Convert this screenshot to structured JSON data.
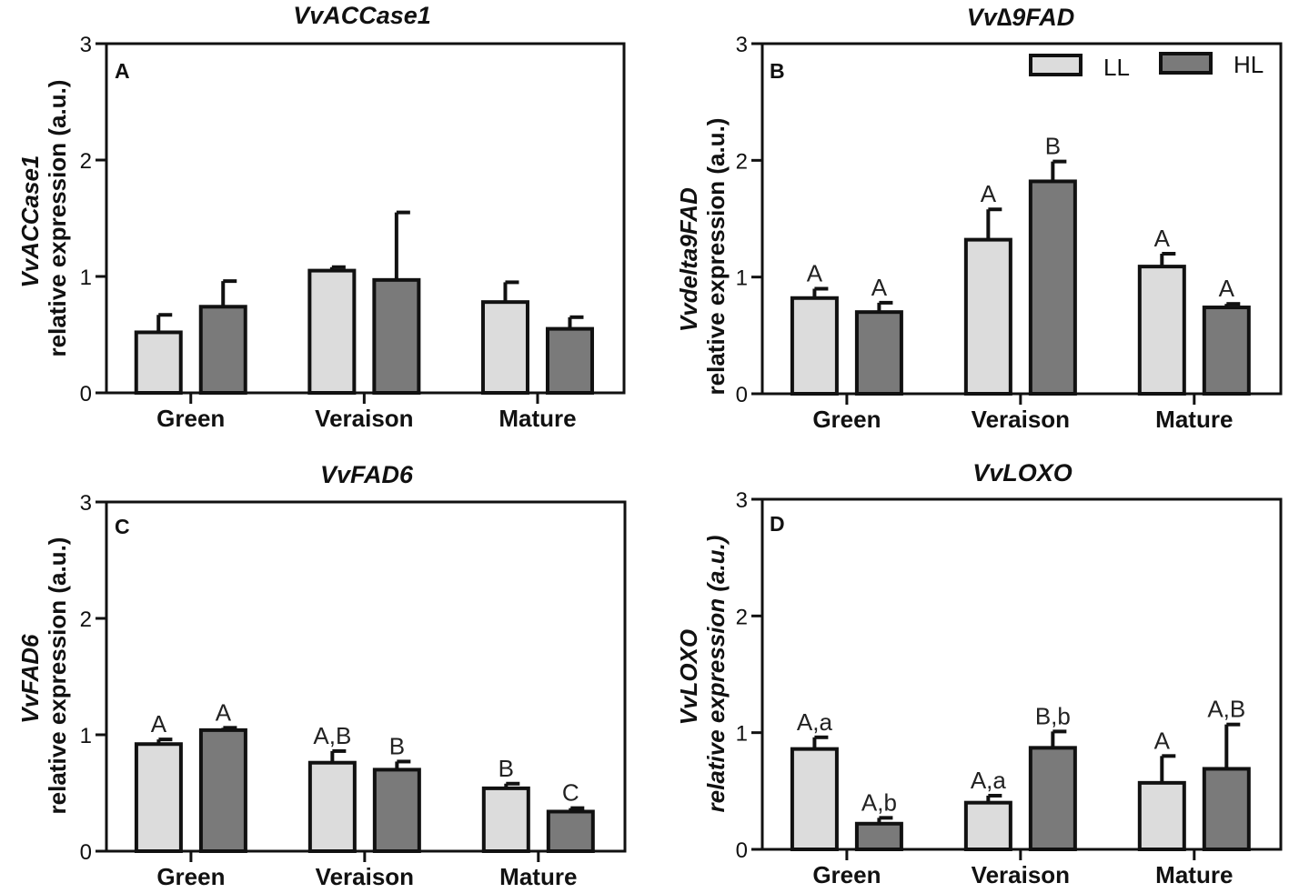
{
  "legend": [
    {
      "label": "LL",
      "color": "#dcdcdc"
    },
    {
      "label": "HL",
      "color": "#7a7a7a"
    }
  ],
  "chart_data": [
    {
      "type": "bar",
      "panel_label": "A",
      "title": "VvACCase1",
      "ylabel_gene": "VvACCase1",
      "ylabel": "relative expression (a.u.)",
      "ylabel_italic": false,
      "categories": [
        "Green",
        "Veraison",
        "Mature"
      ],
      "ylim": [
        0,
        3
      ],
      "yticks": [
        "0",
        "1",
        "2",
        "3"
      ],
      "series": [
        {
          "name": "LL",
          "values": [
            0.52,
            1.05,
            0.78
          ],
          "errors": [
            0.15,
            0.03,
            0.17
          ],
          "labels": [
            "",
            "",
            ""
          ]
        },
        {
          "name": "HL",
          "values": [
            0.74,
            0.97,
            0.55
          ],
          "errors": [
            0.22,
            0.58,
            0.1
          ],
          "labels": [
            "",
            "",
            ""
          ]
        }
      ],
      "legend": false
    },
    {
      "type": "bar",
      "panel_label": "B",
      "title": "Vv∆9FAD",
      "ylabel_gene": "Vvdelta9FAD",
      "ylabel": "relative expression (a.u.)",
      "ylabel_italic": false,
      "categories": [
        "Green",
        "Veraison",
        "Mature"
      ],
      "ylim": [
        0,
        3
      ],
      "yticks": [
        "0",
        "1",
        "2",
        "3"
      ],
      "series": [
        {
          "name": "LL",
          "values": [
            0.82,
            1.32,
            1.09
          ],
          "errors": [
            0.08,
            0.26,
            0.11
          ],
          "labels": [
            "A",
            "A",
            "A"
          ]
        },
        {
          "name": "HL",
          "values": [
            0.7,
            1.82,
            0.74
          ],
          "errors": [
            0.08,
            0.17,
            0.03
          ],
          "labels": [
            "A",
            "B",
            "A"
          ]
        }
      ],
      "legend": true
    },
    {
      "type": "bar",
      "panel_label": "C",
      "title": "VvFAD6",
      "ylabel_gene": "VvFAD6",
      "ylabel": "relative expression (a.u.)",
      "ylabel_italic": false,
      "categories": [
        "Green",
        "Veraison",
        "Mature"
      ],
      "ylim": [
        0,
        3
      ],
      "yticks": [
        "0",
        "1",
        "2",
        "3"
      ],
      "series": [
        {
          "name": "LL",
          "values": [
            0.92,
            0.76,
            0.54
          ],
          "errors": [
            0.04,
            0.1,
            0.04
          ],
          "labels": [
            "A",
            "A,B",
            "B"
          ]
        },
        {
          "name": "HL",
          "values": [
            1.04,
            0.7,
            0.34
          ],
          "errors": [
            0.02,
            0.07,
            0.03
          ],
          "labels": [
            "A",
            "B",
            "C"
          ]
        }
      ],
      "legend": false
    },
    {
      "type": "bar",
      "panel_label": "D",
      "title": "VvLOXO",
      "ylabel_gene": "VvLOXO",
      "ylabel": "relative expression (a.u.)",
      "ylabel_italic": true,
      "categories": [
        "Green",
        "Veraison",
        "Mature"
      ],
      "ylim": [
        0,
        3
      ],
      "yticks": [
        "0",
        "1",
        "2",
        "3"
      ],
      "series": [
        {
          "name": "LL",
          "values": [
            0.86,
            0.4,
            0.57
          ],
          "errors": [
            0.1,
            0.06,
            0.23
          ],
          "labels": [
            "A,a",
            "A,a",
            "A"
          ]
        },
        {
          "name": "HL",
          "values": [
            0.22,
            0.87,
            0.69
          ],
          "errors": [
            0.05,
            0.14,
            0.38
          ],
          "labels": [
            "A,b",
            "B,b",
            "A,B"
          ]
        }
      ],
      "legend": false
    }
  ]
}
